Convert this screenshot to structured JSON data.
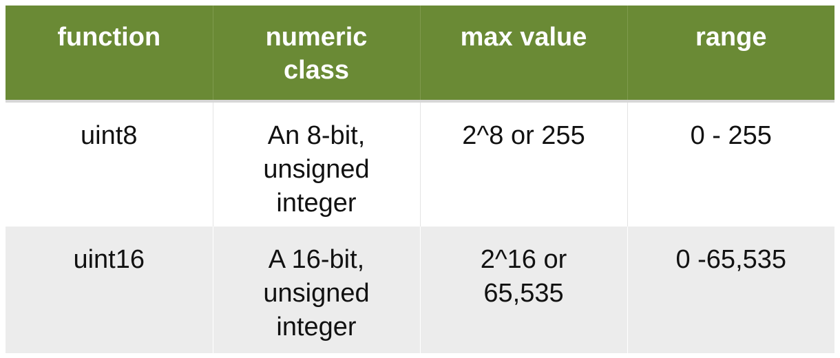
{
  "table": {
    "header_color": "#6a8a35",
    "columns": [
      "function",
      "numeric\nclass",
      "max value",
      "range"
    ],
    "rows": [
      {
        "function": "uint8",
        "numeric_class": "An 8-bit,\nunsigned\ninteger",
        "max_value": "2^8 or 255",
        "range": "0 - 255"
      },
      {
        "function": "uint16",
        "numeric_class": "A 16-bit,\nunsigned\ninteger",
        "max_value": "2^16 or\n65,535",
        "range": "0 -65,535"
      }
    ]
  }
}
